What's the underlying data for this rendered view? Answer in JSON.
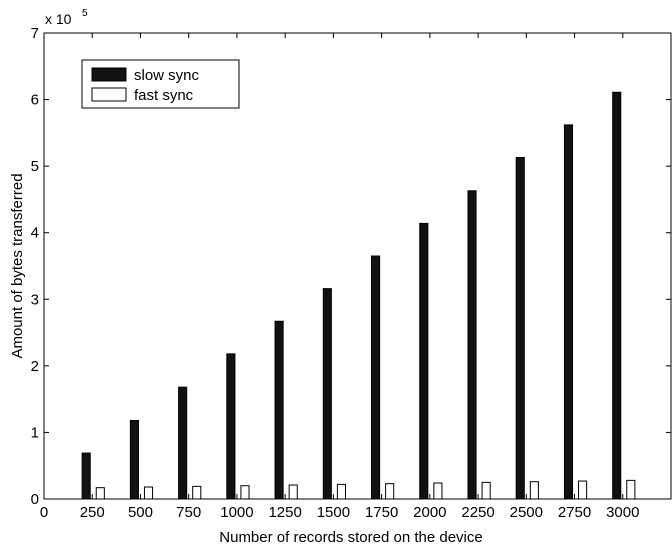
{
  "chart_data": {
    "type": "bar",
    "title": "",
    "xlabel": "Number of records stored on the device",
    "ylabel": "Amount of bytes transferred",
    "y_multiplier_base": "x 10",
    "y_multiplier_exp": "5",
    "categories": [
      250,
      500,
      750,
      1000,
      1250,
      1500,
      1750,
      2000,
      2250,
      2500,
      2750,
      3000
    ],
    "x_ticks": [
      "0",
      "250",
      "500",
      "750",
      "1000",
      "1250",
      "1500",
      "1750",
      "2000",
      "2250",
      "2500",
      "2750",
      "3000"
    ],
    "y_ticks": [
      "0",
      "1",
      "2",
      "3",
      "4",
      "5",
      "6",
      "7"
    ],
    "ylim": [
      0,
      7
    ],
    "grid": false,
    "legend_position": "top-left",
    "series": [
      {
        "name": "slow sync",
        "color": "#111111",
        "values": [
          0.69,
          1.18,
          1.68,
          2.18,
          2.67,
          3.16,
          3.65,
          4.14,
          4.63,
          5.13,
          5.62,
          6.11
        ]
      },
      {
        "name": "fast sync",
        "color": "#ffffff",
        "values": [
          0.17,
          0.18,
          0.19,
          0.2,
          0.21,
          0.22,
          0.23,
          0.24,
          0.25,
          0.26,
          0.27,
          0.28
        ]
      }
    ]
  }
}
